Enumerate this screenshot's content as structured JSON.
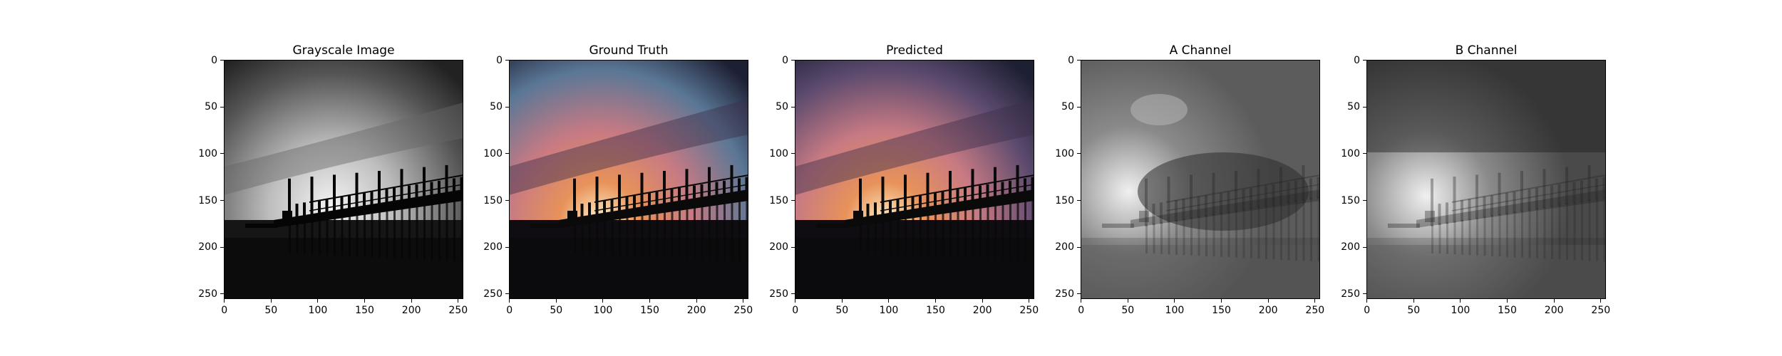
{
  "figure": {
    "panels": [
      {
        "key": "gray",
        "title": "Grayscale Image",
        "style": "grayscale"
      },
      {
        "key": "gt",
        "title": "Ground Truth",
        "style": "color"
      },
      {
        "key": "pred",
        "title": "Predicted",
        "style": "color"
      },
      {
        "key": "a",
        "title": "A Channel",
        "style": "channel-a"
      },
      {
        "key": "b",
        "title": "B Channel",
        "style": "channel-b"
      }
    ],
    "x_ticks": [
      "0",
      "50",
      "100",
      "150",
      "200",
      "250"
    ],
    "y_ticks": [
      "0",
      "50",
      "100",
      "150",
      "200",
      "250"
    ],
    "axis_extent": [
      0,
      256
    ],
    "colors": {
      "sky_blue": "#5a7796",
      "sunset_orange": "#e8925a",
      "sunset_pink": "#c77a83",
      "dusk_purple": "#5b4a6e",
      "silhouette": "#0a0a0a"
    },
    "subject": "pier-silhouette-at-sunset"
  }
}
